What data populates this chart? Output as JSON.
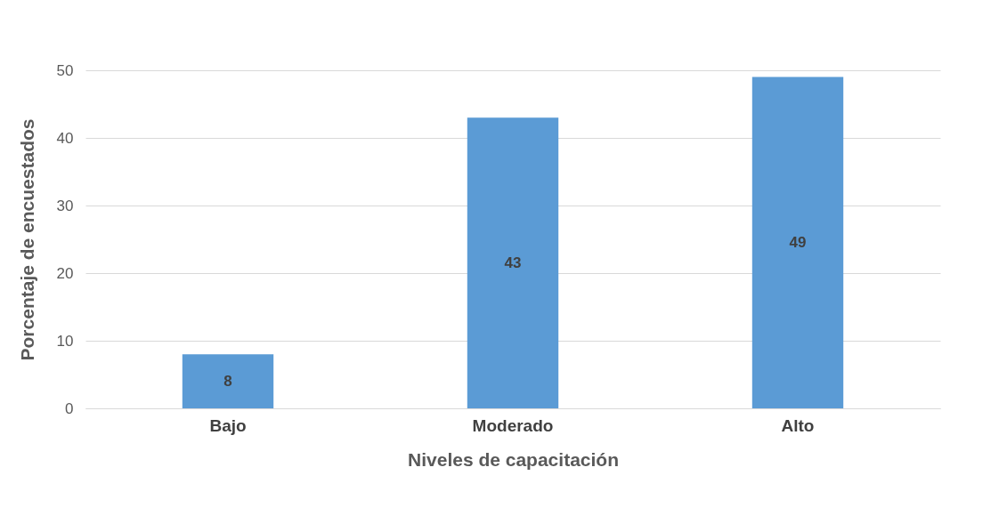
{
  "chart_data": {
    "type": "bar",
    "xlabel": "Niveles de capacitación",
    "ylabel": "Porcentaje de encuestados",
    "categories": [
      "Bajo",
      "Moderado",
      "Alto"
    ],
    "values": [
      8,
      43,
      49
    ],
    "color": "#5b9bd5",
    "ylim": [
      0,
      50
    ],
    "yticks": [
      0,
      10,
      20,
      30,
      40,
      50
    ],
    "grid": "y",
    "data_labels": true
  }
}
